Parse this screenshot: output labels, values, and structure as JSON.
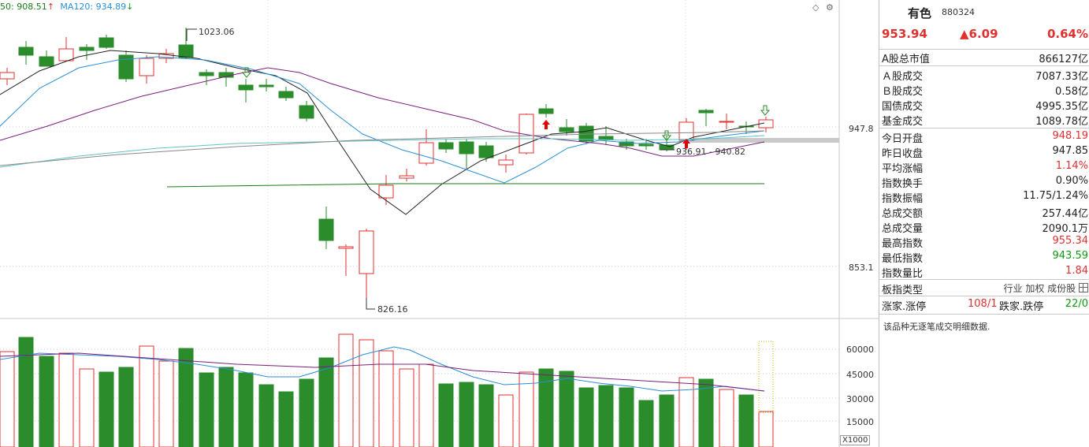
{
  "ma_legend": {
    "ma60_label": "50: 908.51",
    "ma60_arrow": "↑",
    "ma120_label": "MA120: 934.89",
    "ma120_arrow": "↓"
  },
  "chart_labels": {
    "high_mark": "1023.06",
    "low_mark": "826.16",
    "range_mark": "936.91 - 940.82",
    "unit": "X1000"
  },
  "price_axis": [
    "947.8",
    "853.1"
  ],
  "volume_axis": [
    "60000",
    "45000",
    "30000",
    "15000"
  ],
  "colors": {
    "up": "#e03030",
    "down": "#2a8c2a",
    "ma_black": "#222222",
    "ma_blue": "#2a8fd6",
    "ma_purple": "#7a1f7a",
    "ma_teal": "#5fc4c4",
    "ma_green": "#1a7a1a"
  },
  "info": {
    "name": "有色",
    "code": "880324",
    "price": "953.94",
    "change": "▲6.09",
    "change_pct": "0.64%"
  },
  "rows_top": [
    {
      "label": "A股总市值",
      "value": "866127亿",
      "color": ""
    }
  ],
  "rows_mid": [
    {
      "label": "Ａ股成交",
      "value": "7087.33亿",
      "color": ""
    },
    {
      "label": "Ｂ股成交",
      "value": "0.58亿",
      "color": ""
    },
    {
      "label": "国债成交",
      "value": "4995.35亿",
      "color": ""
    },
    {
      "label": "基金成交",
      "value": "1089.78亿",
      "color": ""
    }
  ],
  "rows_stats": [
    {
      "label": "今日开盘",
      "value": "948.19",
      "color": "red"
    },
    {
      "label": "昨日收盘",
      "value": "947.85",
      "color": ""
    },
    {
      "label": "平均涨幅",
      "value": "1.14%",
      "color": "red"
    },
    {
      "label": "指数换手",
      "value": "0.90%",
      "color": ""
    },
    {
      "label": "指数振幅",
      "value": "11.75/1.24%",
      "color": ""
    },
    {
      "label": "总成交额",
      "value": "257.44亿",
      "color": ""
    },
    {
      "label": "总成交量",
      "value": "2090.1万",
      "color": ""
    },
    {
      "label": "最高指数",
      "value": "955.34",
      "color": "red"
    },
    {
      "label": "最低指数",
      "value": "943.59",
      "color": "green"
    },
    {
      "label": "指数量比",
      "value": "1.84",
      "color": "red"
    }
  ],
  "board_type": {
    "label": "板指类型",
    "value": "行业 加权 成份股",
    "icon": "grid-icon"
  },
  "limit_row": {
    "up_label": "涨家.涨停",
    "up_value": "108/1",
    "down_label": "跌家.跌停",
    "down_value": "22/0"
  },
  "note": "该品种无逐笔成交明细数据."
}
